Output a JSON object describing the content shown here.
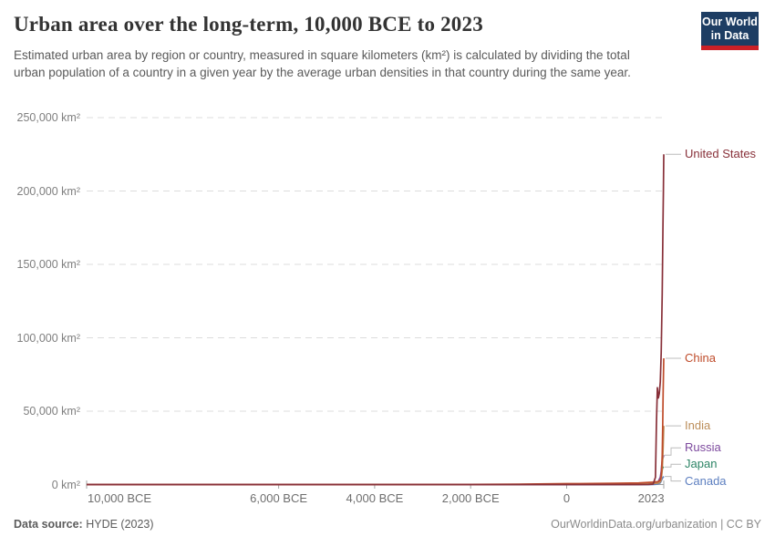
{
  "header": {
    "title": "Urban area over the long-term, 10,000 BCE to 2023",
    "subtitle": "Estimated urban area by region or country, measured in square kilometers (km²) is calculated by dividing the total urban population of a country in a given year by the average urban densities in that country during the same year.",
    "logo": {
      "line1": "Our World",
      "line2": "in Data",
      "bg_color": "#1d3d63",
      "stripe_color": "#cb2026"
    }
  },
  "footer": {
    "source_label": "Data source:",
    "source_value": " HYDE (2023)",
    "credit": "OurWorldinData.org/urbanization | CC BY"
  },
  "chart_data": {
    "type": "line",
    "title": "Urban area over the long-term, 10,000 BCE to 2023",
    "xlabel": "",
    "ylabel": "Urban area (km²)",
    "x_domain": [
      -10000,
      2023
    ],
    "y_domain": [
      0,
      250000
    ],
    "grid": "horizontal-dashed",
    "legend_position": "right-edge-labels",
    "x_ticks": [
      {
        "value": -10000,
        "label": "10,000 BCE"
      },
      {
        "value": -6000,
        "label": "6,000 BCE"
      },
      {
        "value": -4000,
        "label": "4,000 BCE"
      },
      {
        "value": -2000,
        "label": "2,000 BCE"
      },
      {
        "value": 0,
        "label": "0"
      },
      {
        "value": 2023,
        "label": "2023"
      }
    ],
    "y_ticks": [
      {
        "value": 0,
        "label": "0 km²"
      },
      {
        "value": 50000,
        "label": "50,000 km²"
      },
      {
        "value": 100000,
        "label": "100,000 km²"
      },
      {
        "value": 150000,
        "label": "150,000 km²"
      },
      {
        "value": 200000,
        "label": "200,000 km²"
      },
      {
        "value": 250000,
        "label": "250,000 km²"
      }
    ],
    "series": [
      {
        "name": "United States",
        "color": "#883039",
        "value_2023": 225000,
        "points": [
          [
            -10000,
            0
          ],
          [
            -5000,
            0
          ],
          [
            0,
            5
          ],
          [
            1000,
            10
          ],
          [
            1500,
            20
          ],
          [
            1700,
            60
          ],
          [
            1800,
            300
          ],
          [
            1850,
            5000
          ],
          [
            1870,
            40000
          ],
          [
            1890,
            66000
          ],
          [
            1910,
            59000
          ],
          [
            1930,
            62000
          ],
          [
            1950,
            70000
          ],
          [
            1970,
            90000
          ],
          [
            1990,
            130000
          ],
          [
            2005,
            175000
          ],
          [
            2015,
            200000
          ],
          [
            2023,
            225000
          ]
        ]
      },
      {
        "name": "China",
        "color": "#bf4b2a",
        "value_2023": 86000,
        "points": [
          [
            -10000,
            0
          ],
          [
            -5000,
            20
          ],
          [
            -3000,
            60
          ],
          [
            -2000,
            120
          ],
          [
            -1000,
            250
          ],
          [
            0,
            600
          ],
          [
            500,
            700
          ],
          [
            1000,
            900
          ],
          [
            1500,
            1100
          ],
          [
            1800,
            1600
          ],
          [
            1900,
            1900
          ],
          [
            1950,
            3000
          ],
          [
            1970,
            6000
          ],
          [
            1980,
            10000
          ],
          [
            1990,
            20000
          ],
          [
            2000,
            38000
          ],
          [
            2010,
            62000
          ],
          [
            2023,
            86000
          ]
        ]
      },
      {
        "name": "India",
        "color": "#bc8e5a",
        "value_2023": 40000,
        "points": [
          [
            -10000,
            0
          ],
          [
            -2500,
            40
          ],
          [
            -1000,
            100
          ],
          [
            0,
            250
          ],
          [
            1000,
            350
          ],
          [
            1500,
            500
          ],
          [
            1800,
            750
          ],
          [
            1900,
            950
          ],
          [
            1950,
            1800
          ],
          [
            1970,
            3500
          ],
          [
            1980,
            6000
          ],
          [
            1990,
            10000
          ],
          [
            2000,
            16000
          ],
          [
            2010,
            25000
          ],
          [
            2023,
            40000
          ]
        ]
      },
      {
        "name": "Russia",
        "color": "#7d4a9e",
        "value_2023": 20000,
        "points": [
          [
            -10000,
            0
          ],
          [
            0,
            20
          ],
          [
            1000,
            80
          ],
          [
            1500,
            150
          ],
          [
            1700,
            300
          ],
          [
            1800,
            500
          ],
          [
            1850,
            800
          ],
          [
            1900,
            1500
          ],
          [
            1950,
            5000
          ],
          [
            1970,
            9000
          ],
          [
            1980,
            13000
          ],
          [
            1990,
            16000
          ],
          [
            2000,
            17500
          ],
          [
            2010,
            18500
          ],
          [
            2023,
            20000
          ]
        ]
      },
      {
        "name": "Japan",
        "color": "#2c8465",
        "value_2023": 12000,
        "points": [
          [
            -10000,
            0
          ],
          [
            0,
            20
          ],
          [
            500,
            60
          ],
          [
            1000,
            120
          ],
          [
            1500,
            250
          ],
          [
            1700,
            450
          ],
          [
            1800,
            600
          ],
          [
            1900,
            1000
          ],
          [
            1950,
            2800
          ],
          [
            1970,
            6500
          ],
          [
            1980,
            8500
          ],
          [
            1990,
            10500
          ],
          [
            2000,
            11500
          ],
          [
            2023,
            12000
          ]
        ]
      },
      {
        "name": "Canada",
        "color": "#5d7fc0",
        "value_2023": 5500,
        "points": [
          [
            -10000,
            0
          ],
          [
            1500,
            5
          ],
          [
            1700,
            10
          ],
          [
            1800,
            40
          ],
          [
            1850,
            120
          ],
          [
            1900,
            400
          ],
          [
            1950,
            1200
          ],
          [
            1970,
            2500
          ],
          [
            1980,
            3200
          ],
          [
            1990,
            4000
          ],
          [
            2000,
            4600
          ],
          [
            2023,
            5500
          ]
        ]
      }
    ]
  }
}
